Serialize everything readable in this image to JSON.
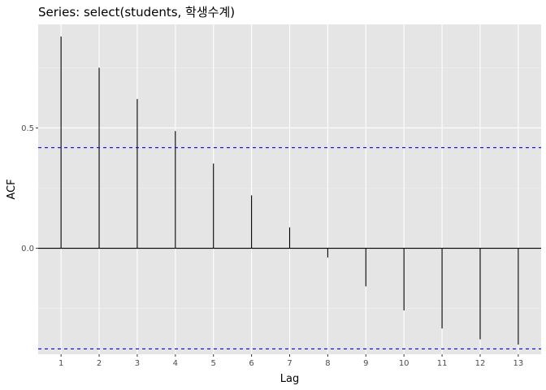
{
  "chart_data": {
    "type": "bar",
    "title": "Series: select(students, 학생수계)",
    "xlabel": "Lag",
    "ylabel": "ACF",
    "x": [
      1,
      2,
      3,
      4,
      5,
      6,
      7,
      8,
      9,
      10,
      11,
      12,
      13
    ],
    "values": [
      0.88,
      0.75,
      0.62,
      0.487,
      0.352,
      0.22,
      0.087,
      -0.038,
      -0.158,
      -0.258,
      -0.333,
      -0.378,
      -0.4
    ],
    "x_ticks": [
      "1",
      "2",
      "3",
      "4",
      "5",
      "6",
      "7",
      "8",
      "9",
      "10",
      "11",
      "12",
      "13"
    ],
    "y_ticks": [
      "0.0",
      "0.5"
    ],
    "y_tick_values": [
      0.0,
      0.5
    ],
    "xlim": [
      0.4,
      13.6
    ],
    "ylim": [
      -0.44,
      0.93
    ],
    "confidence_bound": 0.418,
    "grid": true,
    "colors": {
      "panel_background": "#e5e5e5",
      "grid_major": "#ffffff",
      "grid_minor": "#f2f2f2",
      "bar": "#000000",
      "zero_line": "#000000",
      "confidence_line": "#0000ff",
      "tick_text": "#4d4d4d"
    }
  }
}
